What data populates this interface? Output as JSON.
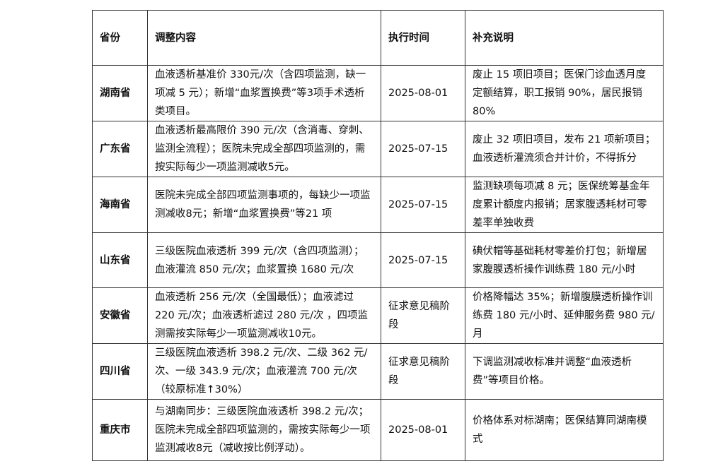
{
  "headers": [
    "省份",
    "调整内容",
    "执行时间",
    "补充说明"
  ],
  "rows": [
    {
      "province": "湖南省",
      "content": "血液透析基准价 330元/次（含四项监测，缺一项减 5 元）；新增“血浆置换费”等3项手术透析类项目。",
      "date": "2025-08-01",
      "note": "废止 15 项旧项目；医保门诊血透月度定额结算，职工报销 90%，居民报销 80%"
    },
    {
      "province": "广东省",
      "content": "血液透析最高限价 390 元/次（含消毒、穿刺、监测全流程）；医院未完成全部四项监测的，需按实际每少一项监测减收5元。",
      "date": "2025-07-15",
      "note": "废止 32 项旧项目，发布 21 项新项目；血液透析灌流须合并计价，不得拆分"
    },
    {
      "province": "海南省",
      "content": "医院未完成全部四项监测事项的，每缺少一项监测减收8元；新增“血浆置换费”等21 项",
      "date": "2025-07-15",
      "note": "监测缺项每项减 8 元；医保统筹基金年度累计额度内报销；居家腹透耗材可零差率单独收费"
    },
    {
      "province": "山东省",
      "content": "三级医院血液透析 399 元/次（含四项监测）；血液灌流 850 元/次；血浆置换 1680 元/次",
      "date": "2025-07-15",
      "note": "碘伏帽等基础耗材零差价打包；新增居家腹膜透析操作训练费 180 元/小时"
    },
    {
      "province": "安徽省",
      "content": "血液透析 256 元/次（全国最低）；血液滤过 220 元/次；血液透析滤过 280 元/次 ，四项监测需按实际每少一项监测减收10元。",
      "date": "征求意见稿阶段",
      "note": "价格降幅达 35%；新增腹膜透析操作训练费 180 元/小时、延伸服务费 980 元/月"
    },
    {
      "province": "四川省",
      "content": "三级医院血液透析 398.2 元/次、二级 362 元/次、一级 343.9 元/次；血液灌流 700 元/次（较原标准↑30%）",
      "date": "征求意见稿阶段",
      "note": "下调监测减收标准并调整“血液透析费”等项目价格。"
    },
    {
      "province": "重庆市",
      "content": "与湖南同步：三级医院血液透析 398.2 元/次；医院未完成全部四项监测的，需按实际每少一项监测减收8元（减收按比例浮动）。",
      "date": "2025-08-01",
      "note": "价格体系对标湖南；医保结算同湖南模式"
    }
  ]
}
